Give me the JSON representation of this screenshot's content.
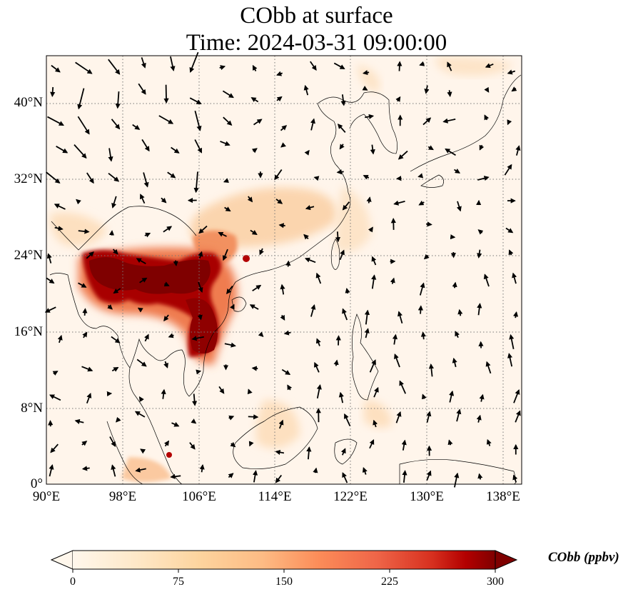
{
  "title": {
    "line1": "CObb at surface",
    "line2": "Time: 2024-03-31 09:00:00"
  },
  "axes": {
    "lon_ticks": [
      "90°E",
      "98°E",
      "106°E",
      "114°E",
      "122°E",
      "130°E",
      "138°E"
    ],
    "lat_ticks": [
      "40°N",
      "32°N",
      "24°N",
      "16°N",
      "8°N",
      "0°"
    ],
    "lon_range": [
      90,
      140
    ],
    "lat_range": [
      0,
      45
    ],
    "gridlines": "dotted",
    "projection": "PlateCarree"
  },
  "colorbar": {
    "label": "CObb (ppbv)",
    "ticks": [
      "0",
      "75",
      "150",
      "225",
      "300"
    ],
    "min": 0,
    "max": 300,
    "colormap": "OrRd",
    "extend": "both"
  },
  "colors": {
    "background": "#fff5eb",
    "low": "#fdebd0",
    "mid": "#f5a26b",
    "high": "#b30000",
    "max": "#7f0000"
  }
}
